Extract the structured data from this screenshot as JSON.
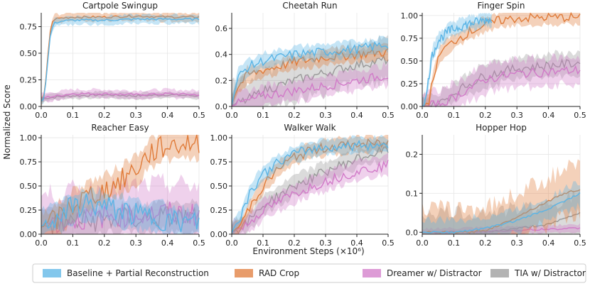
{
  "figure": {
    "ylabel": "Normalized Score",
    "xlabel": "Environment Steps (×10⁶)"
  },
  "legend": [
    {
      "label": "Baseline + Partial Reconstruction",
      "color": "#5ab4e5"
    },
    {
      "label": "RAD Crop",
      "color": "#e07b39"
    },
    {
      "label": "Dreamer w/ Distractor",
      "color": "#d17ac8"
    },
    {
      "label": "TIA w/ Distractor",
      "color": "#999999"
    }
  ],
  "chart_data": [
    {
      "type": "line",
      "title": "Cartpole Swingup",
      "xlim": [
        0,
        0.5
      ],
      "ylim": [
        0,
        0.88
      ],
      "xticks": [
        "0.0",
        "0.1",
        "0.2",
        "0.3",
        "0.4",
        "0.5"
      ],
      "yticks": [
        0,
        0.25,
        0.5,
        0.75
      ],
      "ytick_labels": [
        "0.00",
        "0.25",
        "0.50",
        "0.75"
      ],
      "series": [
        {
          "name": "Baseline + Partial Reconstruction",
          "color": "#5ab4e5",
          "band": 0.04,
          "x": [
            0,
            0.01,
            0.02,
            0.03,
            0.04,
            0.06,
            0.1,
            0.2,
            0.3,
            0.4,
            0.5
          ],
          "y": [
            0.05,
            0.08,
            0.4,
            0.7,
            0.78,
            0.8,
            0.81,
            0.81,
            0.82,
            0.82,
            0.82
          ]
        },
        {
          "name": "RAD Crop",
          "color": "#e07b39",
          "band": 0.04,
          "x": [
            0,
            0.01,
            0.02,
            0.03,
            0.04,
            0.06,
            0.1,
            0.2,
            0.3,
            0.4,
            0.5
          ],
          "y": [
            0.05,
            0.08,
            0.45,
            0.75,
            0.82,
            0.83,
            0.84,
            0.84,
            0.85,
            0.84,
            0.84
          ]
        },
        {
          "name": "Dreamer w/ Distractor",
          "color": "#d17ac8",
          "band": 0.04,
          "x": [
            0,
            0.05,
            0.1,
            0.2,
            0.3,
            0.4,
            0.5
          ],
          "y": [
            0.08,
            0.1,
            0.12,
            0.12,
            0.11,
            0.12,
            0.11
          ]
        },
        {
          "name": "TIA w/ Distractor",
          "color": "#999999",
          "band": 0.03,
          "x": [
            0,
            0.05,
            0.1,
            0.2,
            0.3,
            0.4,
            0.5
          ],
          "y": [
            0.07,
            0.09,
            0.1,
            0.11,
            0.1,
            0.11,
            0.1
          ]
        }
      ]
    },
    {
      "type": "line",
      "title": "Cheetah Run",
      "xlim": [
        0,
        0.5
      ],
      "ylim": [
        0,
        0.72
      ],
      "xticks": [
        "0.0",
        "0.1",
        "0.2",
        "0.3",
        "0.4",
        "0.5"
      ],
      "yticks": [
        0,
        0.2,
        0.4,
        0.6
      ],
      "ytick_labels": [
        "0.0",
        "0.2",
        "0.4",
        "0.6"
      ],
      "series": [
        {
          "name": "Baseline + Partial Reconstruction",
          "color": "#5ab4e5",
          "band": 0.06,
          "x": [
            0,
            0.02,
            0.05,
            0.1,
            0.2,
            0.3,
            0.4,
            0.5
          ],
          "y": [
            0.02,
            0.22,
            0.3,
            0.35,
            0.4,
            0.42,
            0.44,
            0.48
          ]
        },
        {
          "name": "RAD Crop",
          "color": "#e07b39",
          "band": 0.06,
          "x": [
            0,
            0.02,
            0.05,
            0.1,
            0.2,
            0.3,
            0.4,
            0.5
          ],
          "y": [
            0.02,
            0.15,
            0.24,
            0.28,
            0.34,
            0.38,
            0.4,
            0.42
          ]
        },
        {
          "name": "Dreamer w/ Distractor",
          "color": "#d17ac8",
          "band": 0.08,
          "x": [
            0,
            0.05,
            0.1,
            0.2,
            0.3,
            0.4,
            0.5
          ],
          "y": [
            0.01,
            0.04,
            0.08,
            0.12,
            0.16,
            0.2,
            0.24
          ]
        },
        {
          "name": "TIA w/ Distractor",
          "color": "#999999",
          "band": 0.15,
          "x": [
            0,
            0.05,
            0.1,
            0.2,
            0.3,
            0.4,
            0.5
          ],
          "y": [
            0.01,
            0.05,
            0.12,
            0.2,
            0.26,
            0.32,
            0.36
          ]
        }
      ]
    },
    {
      "type": "line",
      "title": "Finger Spin",
      "xlim": [
        0,
        0.5
      ],
      "ylim": [
        0,
        1.03
      ],
      "xticks": [
        "0.0",
        "0.1",
        "0.2",
        "0.3",
        "0.4",
        "0.5"
      ],
      "yticks": [
        0,
        0.25,
        0.5,
        0.75,
        1.0
      ],
      "ytick_labels": [
        "0.00",
        "0.25",
        "0.50",
        "0.75",
        "1.00"
      ],
      "series": [
        {
          "name": "Baseline + Partial Reconstruction",
          "color": "#5ab4e5",
          "band": 0.08,
          "x": [
            0,
            0.01,
            0.02,
            0.03,
            0.05,
            0.08,
            0.12,
            0.16,
            0.2,
            0.22
          ],
          "y": [
            0,
            0.05,
            0.3,
            0.55,
            0.72,
            0.82,
            0.88,
            0.92,
            0.95,
            0.96
          ]
        },
        {
          "name": "RAD Crop",
          "color": "#e07b39",
          "band": 0.08,
          "x": [
            0,
            0.02,
            0.04,
            0.06,
            0.1,
            0.15,
            0.2,
            0.25,
            0.3,
            0.4,
            0.5
          ],
          "y": [
            0,
            0.05,
            0.4,
            0.6,
            0.72,
            0.82,
            0.9,
            0.95,
            0.97,
            0.98,
            0.98
          ]
        },
        {
          "name": "Dreamer w/ Distractor",
          "color": "#d17ac8",
          "band": 0.15,
          "x": [
            0,
            0.05,
            0.1,
            0.15,
            0.2,
            0.3,
            0.4,
            0.5
          ],
          "y": [
            0,
            0.02,
            0.1,
            0.2,
            0.3,
            0.36,
            0.38,
            0.4
          ]
        },
        {
          "name": "TIA w/ Distractor",
          "color": "#999999",
          "band": 0.12,
          "x": [
            0,
            0.05,
            0.1,
            0.15,
            0.2,
            0.3,
            0.4,
            0.5
          ],
          "y": [
            0,
            0.02,
            0.15,
            0.25,
            0.34,
            0.42,
            0.45,
            0.48
          ]
        }
      ]
    },
    {
      "type": "line",
      "title": "Reacher Easy",
      "xlim": [
        0,
        0.5
      ],
      "ylim": [
        0,
        1.03
      ],
      "xticks": [
        "0.0",
        "0.1",
        "0.2",
        "0.3",
        "0.4",
        "0.5"
      ],
      "yticks": [
        0,
        0.25,
        0.5,
        0.75,
        1.0
      ],
      "ytick_labels": [
        "0.00",
        "0.25",
        "0.50",
        "0.75",
        "1.00"
      ],
      "series": [
        {
          "name": "Baseline + Partial Reconstruction",
          "color": "#5ab4e5",
          "band": 0.15,
          "x": [
            0,
            0.05,
            0.1,
            0.15,
            0.2,
            0.25,
            0.3,
            0.35,
            0.4,
            0.45,
            0.5
          ],
          "y": [
            0.1,
            0.18,
            0.28,
            0.32,
            0.28,
            0.25,
            0.2,
            0.18,
            0.15,
            0.12,
            0.12
          ]
        },
        {
          "name": "RAD Crop",
          "color": "#e07b39",
          "band": 0.15,
          "x": [
            0,
            0.05,
            0.1,
            0.15,
            0.2,
            0.25,
            0.3,
            0.35,
            0.4,
            0.45,
            0.5
          ],
          "y": [
            0.08,
            0.15,
            0.3,
            0.4,
            0.45,
            0.55,
            0.68,
            0.85,
            0.92,
            0.94,
            0.95
          ]
        },
        {
          "name": "Dreamer w/ Distractor",
          "color": "#d17ac8",
          "band": 0.3,
          "x": [
            0,
            0.1,
            0.2,
            0.3,
            0.4,
            0.5
          ],
          "y": [
            0.1,
            0.15,
            0.18,
            0.2,
            0.22,
            0.2
          ]
        },
        {
          "name": "TIA w/ Distractor",
          "color": "#999999",
          "band": 0.15,
          "x": [
            0,
            0.1,
            0.2,
            0.3,
            0.4,
            0.5
          ],
          "y": [
            0.08,
            0.12,
            0.15,
            0.16,
            0.18,
            0.16
          ]
        }
      ]
    },
    {
      "type": "line",
      "title": "Walker Walk",
      "xlim": [
        0,
        0.5
      ],
      "ylim": [
        0,
        1.03
      ],
      "xticks": [
        "0.0",
        "0.1",
        "0.2",
        "0.3",
        "0.4",
        "0.5"
      ],
      "yticks": [
        0,
        0.25,
        0.5,
        0.75,
        1.0
      ],
      "ytick_labels": [
        "0.00",
        "0.25",
        "0.50",
        "0.75",
        "1.00"
      ],
      "series": [
        {
          "name": "Baseline + Partial Reconstruction",
          "color": "#5ab4e5",
          "band": 0.08,
          "x": [
            0,
            0.03,
            0.06,
            0.1,
            0.15,
            0.2,
            0.25,
            0.3,
            0.4,
            0.5
          ],
          "y": [
            0.02,
            0.2,
            0.45,
            0.62,
            0.75,
            0.83,
            0.88,
            0.9,
            0.92,
            0.93
          ]
        },
        {
          "name": "RAD Crop",
          "color": "#e07b39",
          "band": 0.08,
          "x": [
            0,
            0.03,
            0.06,
            0.1,
            0.15,
            0.2,
            0.25,
            0.3,
            0.4,
            0.5
          ],
          "y": [
            0.02,
            0.1,
            0.3,
            0.5,
            0.68,
            0.8,
            0.86,
            0.9,
            0.93,
            0.94
          ]
        },
        {
          "name": "Dreamer w/ Distractor",
          "color": "#d17ac8",
          "band": 0.1,
          "x": [
            0,
            0.05,
            0.1,
            0.2,
            0.3,
            0.4,
            0.5
          ],
          "y": [
            0.02,
            0.1,
            0.25,
            0.42,
            0.55,
            0.65,
            0.72
          ]
        },
        {
          "name": "TIA w/ Distractor",
          "color": "#999999",
          "band": 0.1,
          "x": [
            0,
            0.05,
            0.1,
            0.2,
            0.3,
            0.4,
            0.5
          ],
          "y": [
            0.02,
            0.12,
            0.3,
            0.5,
            0.65,
            0.78,
            0.88
          ]
        }
      ]
    },
    {
      "type": "line",
      "title": "Hopper Hop",
      "xlim": [
        0,
        0.5
      ],
      "ylim": [
        -0.005,
        0.25
      ],
      "xticks": [
        "0.0",
        "0.1",
        "0.2",
        "0.3",
        "0.4",
        "0.5"
      ],
      "yticks": [
        0,
        0.1,
        0.2
      ],
      "ytick_labels": [
        "0.0",
        "0.1",
        "0.2"
      ],
      "series": [
        {
          "name": "Baseline + Partial Reconstruction",
          "color": "#5ab4e5",
          "band": 0.03,
          "x": [
            0,
            0.1,
            0.15,
            0.2,
            0.3,
            0.4,
            0.5
          ],
          "y": [
            0,
            0,
            0.005,
            0.01,
            0.03,
            0.06,
            0.1
          ]
        },
        {
          "name": "RAD Crop",
          "color": "#e07b39",
          "band": 0.06,
          "x": [
            0,
            0.15,
            0.2,
            0.25,
            0.3,
            0.35,
            0.4,
            0.45,
            0.5
          ],
          "y": [
            0,
            0,
            0.005,
            0.02,
            0.04,
            0.06,
            0.08,
            0.1,
            0.11
          ]
        },
        {
          "name": "Dreamer w/ Distractor",
          "color": "#d17ac8",
          "band": 0.01,
          "x": [
            0,
            0.1,
            0.2,
            0.3,
            0.4,
            0.5
          ],
          "y": [
            0,
            0,
            0.002,
            0.005,
            0.008,
            0.01
          ]
        },
        {
          "name": "TIA w/ Distractor",
          "color": "#999999",
          "band": 0.05,
          "x": [
            0,
            0.2,
            0.25,
            0.3,
            0.4,
            0.5
          ],
          "y": [
            0,
            0,
            0.005,
            0.01,
            0.02,
            0.05
          ]
        }
      ]
    }
  ]
}
